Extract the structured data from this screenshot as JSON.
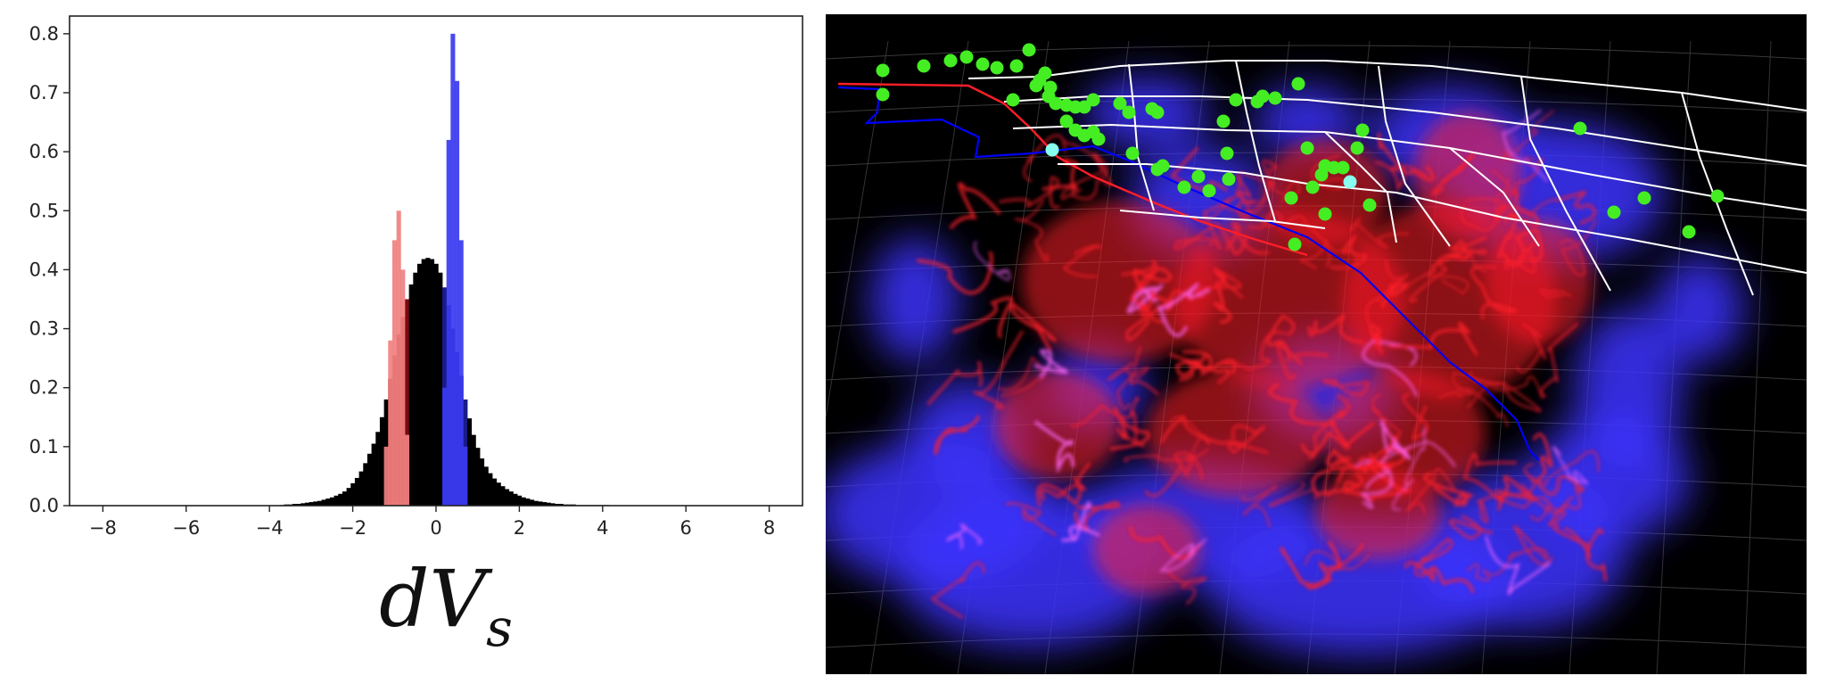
{
  "chart_data": {
    "type": "bar",
    "title": "",
    "xlabel_var": "dV",
    "xlabel_sub": "s",
    "xlim": [
      -8.8,
      8.8
    ],
    "ylim": [
      0,
      0.83
    ],
    "xticks": [
      "−8",
      "−6",
      "−4",
      "−2",
      "0",
      "2",
      "4",
      "6",
      "8"
    ],
    "xtick_values": [
      -8,
      -6,
      -4,
      -2,
      0,
      2,
      4,
      6,
      8
    ],
    "yticks": [
      "0.0",
      "0.1",
      "0.2",
      "0.3",
      "0.4",
      "0.5",
      "0.6",
      "0.7",
      "0.8"
    ],
    "ytick_values": [
      0,
      0.1,
      0.2,
      0.3,
      0.4,
      0.5,
      0.6,
      0.7,
      0.8
    ],
    "bin_width": 0.1,
    "series": [
      {
        "color": "#000000",
        "x_centers": [
          -3.7,
          -3.6,
          -3.5,
          -3.4,
          -3.3,
          -3.2,
          -3.1,
          -3.0,
          -2.9,
          -2.8,
          -2.7,
          -2.6,
          -2.5,
          -2.4,
          -2.3,
          -2.2,
          -2.1,
          -2.0,
          -1.9,
          -1.8,
          -1.7,
          -1.6,
          -1.5,
          -1.4,
          -1.3,
          -1.2,
          -1.1,
          -1.0,
          -0.9,
          -0.8,
          -0.7,
          -0.6,
          -0.5,
          -0.4,
          -0.3,
          -0.2,
          -0.1,
          0.0,
          0.1,
          0.2,
          0.3,
          0.4,
          0.5,
          0.6,
          0.7,
          0.8,
          0.9,
          1.0,
          1.1,
          1.2,
          1.3,
          1.4,
          1.5,
          1.6,
          1.7,
          1.8,
          1.9,
          2.0,
          2.1,
          2.2,
          2.3,
          2.4,
          2.5,
          2.6,
          2.7,
          2.8,
          2.9,
          3.0,
          3.1,
          3.2,
          3.3,
          3.4,
          3.5,
          3.6,
          3.7,
          3.8,
          3.9,
          4.0,
          4.1
        ],
        "values": [
          0.001,
          0.002,
          0.002,
          0.003,
          0.003,
          0.004,
          0.005,
          0.006,
          0.007,
          0.008,
          0.01,
          0.012,
          0.014,
          0.017,
          0.02,
          0.024,
          0.03,
          0.038,
          0.047,
          0.058,
          0.072,
          0.088,
          0.105,
          0.125,
          0.15,
          0.18,
          0.215,
          0.255,
          0.29,
          0.32,
          0.35,
          0.375,
          0.395,
          0.41,
          0.418,
          0.42,
          0.418,
          0.41,
          0.395,
          0.37,
          0.34,
          0.3,
          0.26,
          0.22,
          0.18,
          0.148,
          0.12,
          0.098,
          0.08,
          0.066,
          0.055,
          0.046,
          0.039,
          0.033,
          0.028,
          0.024,
          0.02,
          0.017,
          0.014,
          0.012,
          0.01,
          0.008,
          0.007,
          0.006,
          0.005,
          0.004,
          0.003,
          0.003,
          0.002,
          0.002,
          0.002,
          0.001,
          0.001,
          0.001,
          0.001,
          0.001,
          0.001,
          0.001,
          0.001
        ]
      },
      {
        "color": "#f08080",
        "x_centers": [
          -1.2,
          -1.1,
          -1.0,
          -0.9,
          -0.8,
          -0.7
        ],
        "values": [
          0.1,
          0.28,
          0.45,
          0.5,
          0.4,
          0.12
        ]
      },
      {
        "color": "#3a3af0",
        "x_centers": [
          0.2,
          0.3,
          0.4,
          0.5,
          0.6,
          0.7
        ],
        "values": [
          0.2,
          0.62,
          0.8,
          0.72,
          0.45,
          0.1
        ]
      }
    ]
  },
  "visualization": {
    "description_none": "",
    "colors": {
      "background": "#000000",
      "negative_anomaly": "#ff1e28",
      "positive_anomaly": "#3c32ff",
      "markers": "#44ee22",
      "marker_highlight": "#88ffee",
      "state_lines": "#ffffff",
      "coastline": "#0000ff",
      "plate_boundary": "#ff00ff"
    },
    "marker_count": 62
  }
}
